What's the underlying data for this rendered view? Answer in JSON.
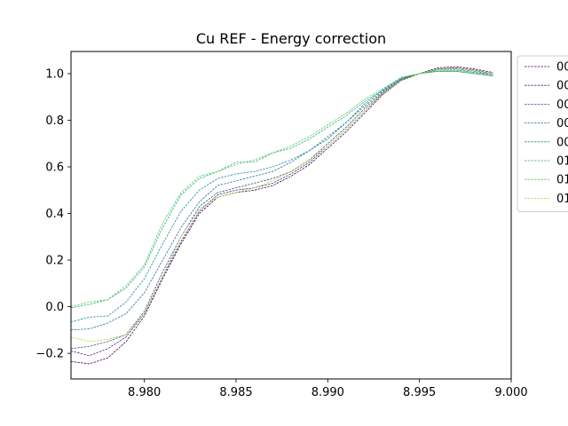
{
  "chart_data": {
    "type": "line",
    "title": "Cu REF - Energy correction",
    "xlabel": "",
    "ylabel": "",
    "xlim": [
      8.976,
      9.0
    ],
    "ylim": [
      -0.31,
      1.095
    ],
    "xticks": [
      8.98,
      8.985,
      8.99,
      8.995,
      9.0
    ],
    "xtick_labels": [
      "8.980",
      "8.985",
      "8.990",
      "8.995",
      "9.000"
    ],
    "yticks": [
      -0.2,
      0.0,
      0.2,
      0.4,
      0.6,
      0.8,
      1.0
    ],
    "ytick_labels": [
      "−0.2",
      "0.0",
      "0.2",
      "0.4",
      "0.6",
      "0.8",
      "1.0"
    ],
    "grid": false,
    "legend_position": "outside-right-top",
    "line_style": "dashed",
    "x": [
      8.976,
      8.977,
      8.978,
      8.979,
      8.98,
      8.981,
      8.982,
      8.983,
      8.984,
      8.985,
      8.986,
      8.987,
      8.988,
      8.989,
      8.99,
      8.991,
      8.992,
      8.993,
      8.994,
      8.995,
      8.996,
      8.997,
      8.998,
      8.999
    ],
    "series": [
      {
        "name": "00",
        "color": "#440154",
        "values": [
          -0.235,
          -0.245,
          -0.22,
          -0.15,
          -0.04,
          0.12,
          0.27,
          0.4,
          0.47,
          0.49,
          0.5,
          0.52,
          0.56,
          0.61,
          0.68,
          0.75,
          0.83,
          0.91,
          0.97,
          1.0,
          1.025,
          1.03,
          1.02,
          1.005
        ]
      },
      {
        "name": "00",
        "color": "#472c7a",
        "values": [
          -0.19,
          -0.21,
          -0.18,
          -0.13,
          -0.03,
          0.13,
          0.28,
          0.41,
          0.48,
          0.5,
          0.51,
          0.53,
          0.57,
          0.62,
          0.69,
          0.76,
          0.84,
          0.915,
          0.975,
          1.0,
          1.02,
          1.025,
          1.015,
          1.0
        ]
      },
      {
        "name": "00",
        "color": "#3b518b",
        "values": [
          -0.18,
          -0.17,
          -0.15,
          -0.12,
          -0.02,
          0.15,
          0.3,
          0.43,
          0.49,
          0.51,
          0.53,
          0.55,
          0.58,
          0.63,
          0.7,
          0.77,
          0.85,
          0.92,
          0.975,
          1.0,
          1.02,
          1.02,
          1.01,
          0.995
        ]
      },
      {
        "name": "00",
        "color": "#2c718e",
        "values": [
          -0.1,
          -0.095,
          -0.07,
          -0.03,
          0.06,
          0.2,
          0.34,
          0.45,
          0.52,
          0.54,
          0.56,
          0.58,
          0.62,
          0.67,
          0.72,
          0.79,
          0.86,
          0.925,
          0.98,
          1.0,
          1.015,
          1.015,
          1.005,
          0.995
        ]
      },
      {
        "name": "00",
        "color": "#21908d",
        "values": [
          -0.065,
          -0.045,
          -0.04,
          0.02,
          0.12,
          0.27,
          0.41,
          0.5,
          0.55,
          0.57,
          0.58,
          0.6,
          0.63,
          0.67,
          0.73,
          0.79,
          0.87,
          0.93,
          0.98,
          1.0,
          1.01,
          1.01,
          1.0,
          0.99
        ]
      },
      {
        "name": "01",
        "color": "#27ad81",
        "values": [
          -0.005,
          0.01,
          0.03,
          0.08,
          0.17,
          0.34,
          0.48,
          0.55,
          0.58,
          0.62,
          0.62,
          0.66,
          0.68,
          0.72,
          0.77,
          0.82,
          0.88,
          0.93,
          0.98,
          1.0,
          1.01,
          1.01,
          1.0,
          0.99
        ]
      },
      {
        "name": "01",
        "color": "#5cc863",
        "values": [
          0.0,
          0.02,
          0.03,
          0.09,
          0.18,
          0.36,
          0.49,
          0.56,
          0.58,
          0.61,
          0.63,
          0.66,
          0.69,
          0.73,
          0.78,
          0.83,
          0.89,
          0.935,
          0.985,
          1.0,
          1.015,
          1.015,
          1.005,
          0.995
        ]
      },
      {
        "name": "01",
        "color": "#aadc32",
        "values": [
          -0.13,
          -0.15,
          -0.14,
          -0.12,
          -0.03,
          0.13,
          0.3,
          0.42,
          0.47,
          0.49,
          0.51,
          0.54,
          0.58,
          0.63,
          0.69,
          0.76,
          0.84,
          0.91,
          0.97,
          1.0,
          1.02,
          1.02,
          1.01,
          1.0
        ]
      }
    ]
  }
}
